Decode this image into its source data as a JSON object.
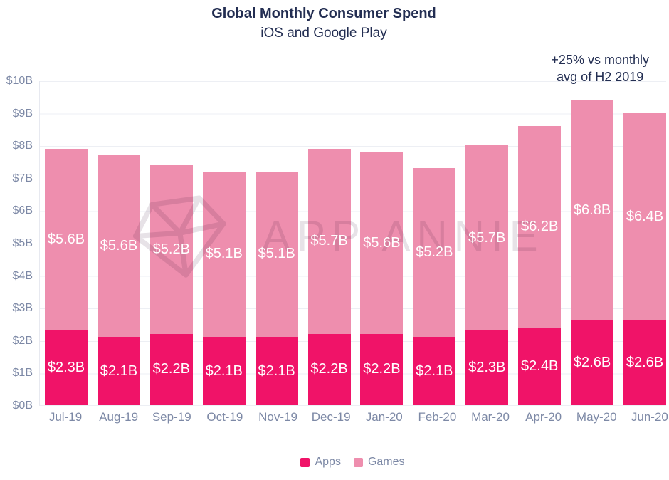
{
  "header": {
    "title": "Global Monthly Consumer Spend",
    "subtitle": "iOS and Google Play",
    "annotation_line1": "+25% vs monthly",
    "annotation_line2": "avg of H2 2019"
  },
  "watermark": {
    "text": "APP ANNIE",
    "icon": "gem-diamond"
  },
  "colors": {
    "apps": "#f01368",
    "games": "#ee8eae",
    "navy": "#232e52",
    "axis_text": "#7d89a6",
    "gridline": "#edeff4"
  },
  "chart_data": {
    "type": "bar",
    "stacked": true,
    "title": "Global Monthly Consumer Spend",
    "subtitle": "iOS and Google Play",
    "annotation": "+25% vs monthly avg of H2 2019",
    "categories": [
      "Jul-19",
      "Aug-19",
      "Sep-19",
      "Oct-19",
      "Nov-19",
      "Dec-19",
      "Jan-20",
      "Feb-20",
      "Mar-20",
      "Apr-20",
      "May-20",
      "Jun-20"
    ],
    "series": [
      {
        "name": "Apps",
        "color": "#f01368",
        "values": [
          2.3,
          2.1,
          2.2,
          2.1,
          2.1,
          2.2,
          2.2,
          2.1,
          2.3,
          2.4,
          2.6,
          2.6
        ]
      },
      {
        "name": "Games",
        "color": "#ee8eae",
        "values": [
          5.6,
          5.6,
          5.2,
          5.1,
          5.1,
          5.7,
          5.6,
          5.2,
          5.7,
          6.2,
          6.8,
          6.4
        ]
      }
    ],
    "value_format": "${v}B",
    "ylabel": "",
    "ylim": [
      0,
      10
    ],
    "y_ticks": [
      "$0B",
      "$1B",
      "$2B",
      "$3B",
      "$4B",
      "$5B",
      "$6B",
      "$7B",
      "$8B",
      "$9B",
      "$10B"
    ],
    "grid": true,
    "legend_position": "bottom"
  }
}
